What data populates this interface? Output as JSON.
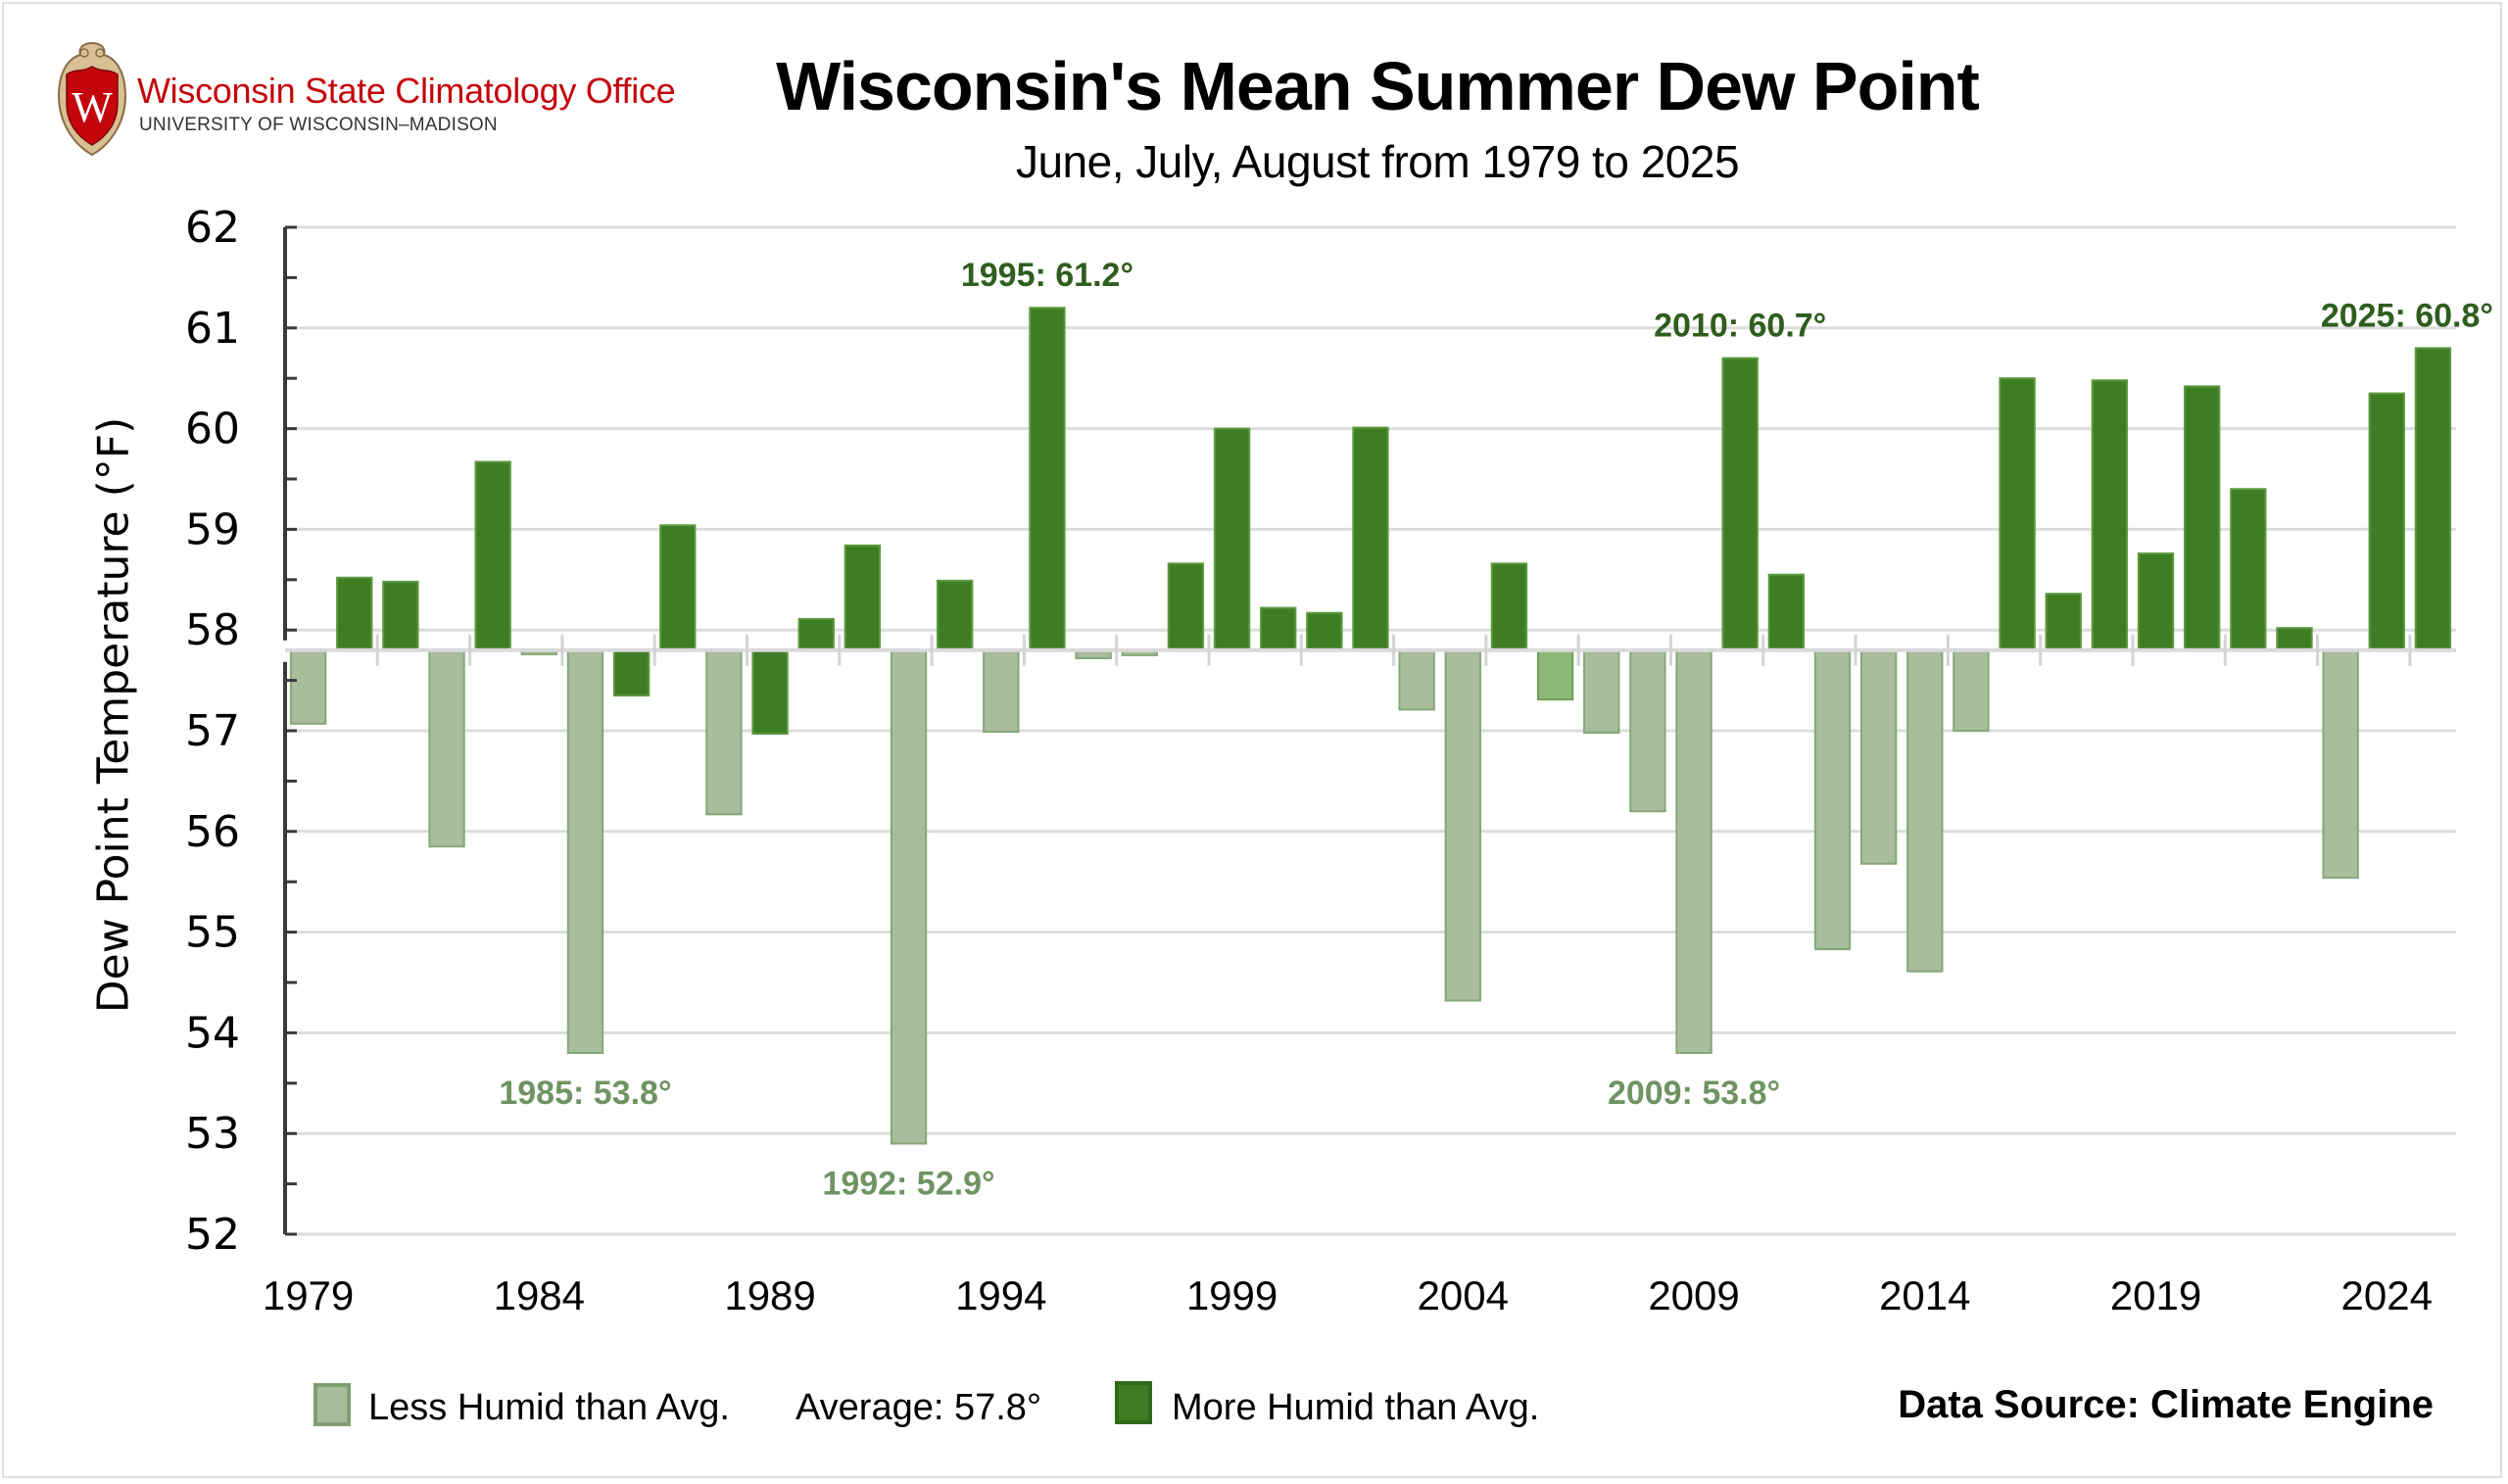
{
  "branding": {
    "org_name": "Wisconsin State Climatology Office",
    "org_sub": "UNIVERSITY OF WISCONSIN–MADISON",
    "logo_icon": "uw-crest-icon",
    "logo_letter": "W"
  },
  "legend": {
    "less_label": "Less Humid than Avg.",
    "average_label": "Average: 57.8°",
    "more_label": "More Humid than Avg."
  },
  "source": "Data Source: Climate Engine",
  "colors": {
    "more_humid": "#3f7d23",
    "less_humid": "#a7bd9c",
    "less_humid_border": "#86a877",
    "highlight_light": "#8db878",
    "annotation_high": "#2e5e1e",
    "annotation_low": "#6f9462",
    "gridline": "#dcdcdc",
    "axis": "#3a3a3a",
    "crest_red": "#c5050c",
    "crest_gold": "#d8bf94"
  },
  "chart_data": {
    "type": "bar",
    "title": "Wisconsin's Mean Summer Dew Point",
    "subtitle": "June, July, August from 1979 to 2025",
    "xlabel": "",
    "ylabel": "Dew Point Temperature (°F)",
    "ylim": [
      52,
      62
    ],
    "yticks": [
      52,
      53,
      54,
      55,
      56,
      57,
      58,
      59,
      60,
      61,
      62
    ],
    "ytick_labels": [
      "52",
      "53",
      "54",
      "55",
      "56",
      "57",
      "58",
      "59",
      "60",
      "61",
      "62"
    ],
    "xtick_labels": [
      "1979",
      "1984",
      "1989",
      "1994",
      "1999",
      "2004",
      "2009",
      "2014",
      "2019",
      "2024"
    ],
    "baseline": 57.8,
    "grid": true,
    "legend_position": "bottom",
    "categories": [
      1979,
      1980,
      1981,
      1982,
      1983,
      1984,
      1985,
      1986,
      1987,
      1988,
      1989,
      1990,
      1991,
      1992,
      1993,
      1994,
      1995,
      1996,
      1997,
      1998,
      1999,
      2000,
      2001,
      2002,
      2003,
      2004,
      2005,
      2006,
      2007,
      2008,
      2009,
      2010,
      2011,
      2012,
      2013,
      2014,
      2015,
      2016,
      2017,
      2018,
      2019,
      2020,
      2021,
      2022,
      2023,
      2024,
      2025
    ],
    "values": [
      57.07,
      58.52,
      58.48,
      55.85,
      59.67,
      57.76,
      53.8,
      57.35,
      59.04,
      56.17,
      56.97,
      58.11,
      58.84,
      52.9,
      58.49,
      56.99,
      61.2,
      57.72,
      57.75,
      58.66,
      60.0,
      58.22,
      58.17,
      60.01,
      57.21,
      54.32,
      58.66,
      57.31,
      56.98,
      56.2,
      53.8,
      60.7,
      58.55,
      54.83,
      55.68,
      54.61,
      57.0,
      60.5,
      58.36,
      60.48,
      58.76,
      60.42,
      59.4,
      58.02,
      55.54,
      60.35,
      60.8
    ],
    "series_class": [
      "less",
      "more",
      "more",
      "less",
      "more",
      "less",
      "less",
      "more",
      "more",
      "less",
      "more",
      "more",
      "more",
      "less",
      "more",
      "less",
      "more",
      "less",
      "less",
      "more",
      "more",
      "more",
      "more",
      "more",
      "less",
      "less",
      "more",
      "highlight",
      "less",
      "less",
      "less",
      "more",
      "more",
      "less",
      "less",
      "less",
      "less",
      "more",
      "more",
      "more",
      "more",
      "more",
      "more",
      "more",
      "less",
      "more",
      "more"
    ],
    "legend": [
      "Less Humid than Avg.",
      "More Humid than Avg."
    ],
    "annotations": [
      {
        "year": 1985,
        "text": "1985: 53.8°",
        "kind": "low"
      },
      {
        "year": 1992,
        "text": "1992: 52.9°",
        "kind": "low"
      },
      {
        "year": 1995,
        "text": "1995: 61.2°",
        "kind": "high"
      },
      {
        "year": 2009,
        "text": "2009: 53.8°",
        "kind": "low"
      },
      {
        "year": 2010,
        "text": "2010: 60.7°",
        "kind": "high"
      },
      {
        "year": 2025,
        "text": "2025: 60.8°",
        "kind": "high"
      }
    ]
  }
}
